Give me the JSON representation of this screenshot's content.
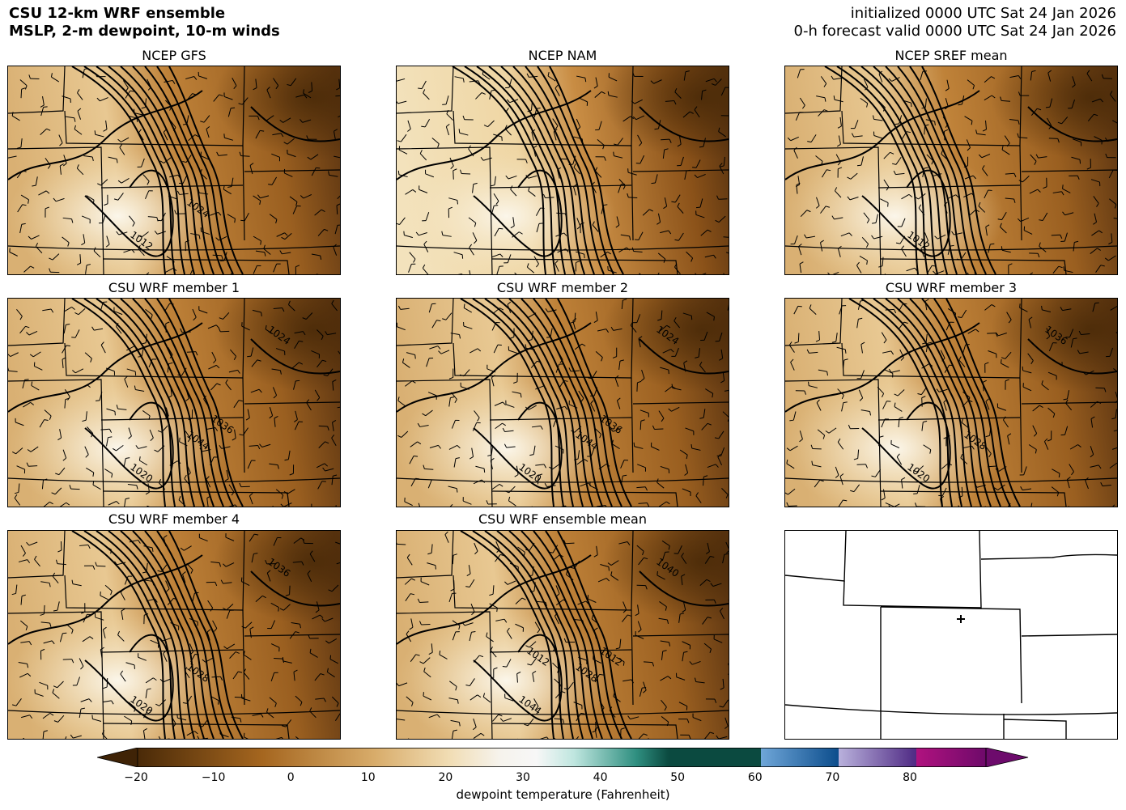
{
  "header": {
    "title_line1": "CSU 12-km WRF ensemble",
    "title_line2": "MSLP, 2-m dewpoint, 10-m winds",
    "init_line": "initialized 0000 UTC Sat 24 Jan 2026",
    "valid_line": "0-h forecast valid 0000 UTC Sat 24 Jan 2026"
  },
  "panels": [
    {
      "title": "NCEP GFS",
      "labels": [
        "1012",
        "1024"
      ]
    },
    {
      "title": "NCEP NAM",
      "labels": []
    },
    {
      "title": "NCEP SREF mean",
      "labels": [
        "1012"
      ]
    },
    {
      "title": "CSU WRF member 1",
      "labels": [
        "1020",
        "1044",
        "1024",
        "1036"
      ]
    },
    {
      "title": "CSU WRF member 2",
      "labels": [
        "1020",
        "1044",
        "1024",
        "1036"
      ]
    },
    {
      "title": "CSU WRF member 3",
      "labels": [
        "1020",
        "1028",
        "1036"
      ]
    },
    {
      "title": "CSU WRF member 4",
      "labels": [
        "1020",
        "1028",
        "1036"
      ]
    },
    {
      "title": "CSU WRF ensemble mean",
      "labels": [
        "1044",
        "1028",
        "1040",
        "1012",
        "1012"
      ]
    },
    {
      "title": "",
      "labels": []
    }
  ],
  "colorbar": {
    "label": "dewpoint temperature (Fahrenheit)",
    "min": -20,
    "max": 90,
    "ticks": [
      "−20",
      "−10",
      "0",
      "10",
      "20",
      "30",
      "40",
      "50",
      "60",
      "70",
      "80"
    ]
  },
  "colors": {
    "dark_brown": "#4a2a08",
    "mid_brown": "#b7792f",
    "light_tan": "#f5e3bf",
    "white": "#f6f6f4",
    "teal_light": "#c9ece4",
    "teal_dark": "#0e5a4f",
    "blue": "#2a6fb0",
    "purple_light": "#b7aee0",
    "purple_dark": "#5a2f8a",
    "magenta": "#a0107a"
  }
}
